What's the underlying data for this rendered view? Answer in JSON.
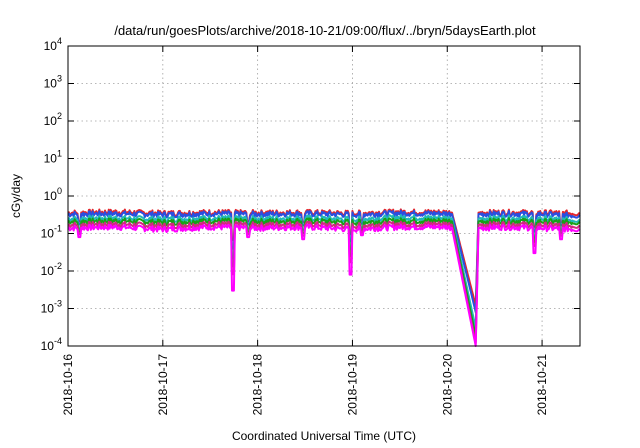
{
  "chart_data": {
    "type": "line",
    "title": "/data/run/goesPlots/archive/2018-10-21/09:00/flux/../bryn/5daysEarth.plot",
    "xlabel": "Coordinated Universal Time (UTC)",
    "ylabel": "cGy/day",
    "yscale": "log",
    "ylim": [
      0.0001,
      10000
    ],
    "xlim": [
      0,
      5.4
    ],
    "grid": true,
    "legend": "none",
    "y_ticks": [
      {
        "base": "10",
        "exp": "4"
      },
      {
        "base": "10",
        "exp": "3"
      },
      {
        "base": "10",
        "exp": "2"
      },
      {
        "base": "10",
        "exp": "1"
      },
      {
        "base": "10",
        "exp": "0"
      },
      {
        "base": "10",
        "exp": "-1"
      },
      {
        "base": "10",
        "exp": "-2"
      },
      {
        "base": "10",
        "exp": "-3"
      },
      {
        "base": "10",
        "exp": "-4"
      }
    ],
    "y_tick_values": [
      10000,
      1000,
      100,
      10,
      1,
      0.1,
      0.01,
      0.001,
      0.0001
    ],
    "x_ticks": [
      "2018-10-16",
      "2018-10-17",
      "2018-10-18",
      "2018-10-19",
      "2018-10-20",
      "2018-10-21"
    ],
    "x_tick_values": [
      0,
      1,
      2,
      3,
      4,
      5
    ],
    "series": [
      {
        "color": "#e4262c",
        "base": 0.36,
        "dip": 0.0012,
        "shape": [
          [
            0,
            0.36
          ],
          [
            0.5,
            0.38
          ],
          [
            1.0,
            0.35
          ],
          [
            1.5,
            0.37
          ],
          [
            2.0,
            0.36
          ],
          [
            2.5,
            0.37
          ],
          [
            3.0,
            0.35
          ],
          [
            3.5,
            0.38
          ],
          [
            4.0,
            0.37
          ],
          [
            4.05,
            0.36
          ],
          [
            4.3,
            0.0012
          ],
          [
            4.33,
            0.36
          ],
          [
            4.6,
            0.37
          ],
          [
            5.0,
            0.36
          ],
          [
            5.4,
            0.35
          ]
        ]
      },
      {
        "color": "#2a4fe0",
        "base": 0.33,
        "dip": 0.0008,
        "shape": [
          [
            0,
            0.33
          ],
          [
            0.5,
            0.34
          ],
          [
            1.0,
            0.32
          ],
          [
            1.5,
            0.34
          ],
          [
            2.0,
            0.33
          ],
          [
            2.5,
            0.34
          ],
          [
            3.0,
            0.32
          ],
          [
            3.5,
            0.35
          ],
          [
            4.0,
            0.34
          ],
          [
            4.05,
            0.33
          ],
          [
            4.3,
            0.0008
          ],
          [
            4.33,
            0.33
          ],
          [
            4.6,
            0.34
          ],
          [
            5.0,
            0.33
          ],
          [
            5.4,
            0.3
          ]
        ]
      },
      {
        "color": "#20b8b8",
        "base": 0.25,
        "dip": 0.0003,
        "shape": [
          [
            0,
            0.25
          ],
          [
            0.5,
            0.26
          ],
          [
            1.0,
            0.24
          ],
          [
            1.5,
            0.26
          ],
          [
            2.0,
            0.25
          ],
          [
            2.5,
            0.26
          ],
          [
            3.0,
            0.24
          ],
          [
            3.5,
            0.27
          ],
          [
            4.0,
            0.26
          ],
          [
            4.05,
            0.25
          ],
          [
            4.3,
            0.0003
          ],
          [
            4.33,
            0.25
          ],
          [
            4.6,
            0.26
          ],
          [
            5.0,
            0.25
          ],
          [
            5.4,
            0.23
          ]
        ]
      },
      {
        "color": "#18a018",
        "base": 0.21,
        "dip": 0.00018,
        "shape": [
          [
            0,
            0.21
          ],
          [
            0.5,
            0.22
          ],
          [
            1.0,
            0.2
          ],
          [
            1.5,
            0.22
          ],
          [
            2.0,
            0.21
          ],
          [
            2.5,
            0.22
          ],
          [
            3.0,
            0.2
          ],
          [
            3.5,
            0.22
          ],
          [
            4.0,
            0.22
          ],
          [
            4.05,
            0.21
          ],
          [
            4.3,
            0.00018
          ],
          [
            4.33,
            0.21
          ],
          [
            4.6,
            0.22
          ],
          [
            5.0,
            0.21
          ],
          [
            5.4,
            0.2
          ]
        ]
      },
      {
        "color": "#d02a80",
        "base": 0.17,
        "dip": 0.00012,
        "shape": [
          [
            0,
            0.17
          ],
          [
            0.5,
            0.18
          ],
          [
            1.0,
            0.16
          ],
          [
            1.5,
            0.18
          ],
          [
            2.0,
            0.17
          ],
          [
            2.5,
            0.18
          ],
          [
            3.0,
            0.16
          ],
          [
            3.5,
            0.18
          ],
          [
            4.0,
            0.18
          ],
          [
            4.05,
            0.17
          ],
          [
            4.3,
            0.00012
          ],
          [
            4.33,
            0.17
          ],
          [
            4.6,
            0.18
          ],
          [
            5.0,
            0.17
          ],
          [
            5.4,
            0.16
          ]
        ]
      },
      {
        "color": "#ff00ff",
        "base": 0.14,
        "dip": 0.0001,
        "shape": [
          [
            0,
            0.14
          ],
          [
            0.5,
            0.15
          ],
          [
            1.0,
            0.13
          ],
          [
            1.5,
            0.15
          ],
          [
            2.0,
            0.14
          ],
          [
            2.5,
            0.15
          ],
          [
            3.0,
            0.13
          ],
          [
            3.5,
            0.15
          ],
          [
            4.0,
            0.15
          ],
          [
            4.05,
            0.14
          ],
          [
            4.3,
            0.0001
          ],
          [
            4.33,
            0.14
          ],
          [
            4.6,
            0.15
          ],
          [
            5.0,
            0.14
          ],
          [
            5.4,
            0.13
          ]
        ]
      }
    ],
    "spikes": [
      {
        "x": 0.12,
        "y": 0.08
      },
      {
        "x": 1.74,
        "y": 0.003
      },
      {
        "x": 1.9,
        "y": 0.08
      },
      {
        "x": 2.48,
        "y": 0.07
      },
      {
        "x": 2.98,
        "y": 0.008
      },
      {
        "x": 3.1,
        "y": 0.09
      },
      {
        "x": 4.92,
        "y": 0.03
      },
      {
        "x": 5.2,
        "y": 0.07
      }
    ]
  }
}
